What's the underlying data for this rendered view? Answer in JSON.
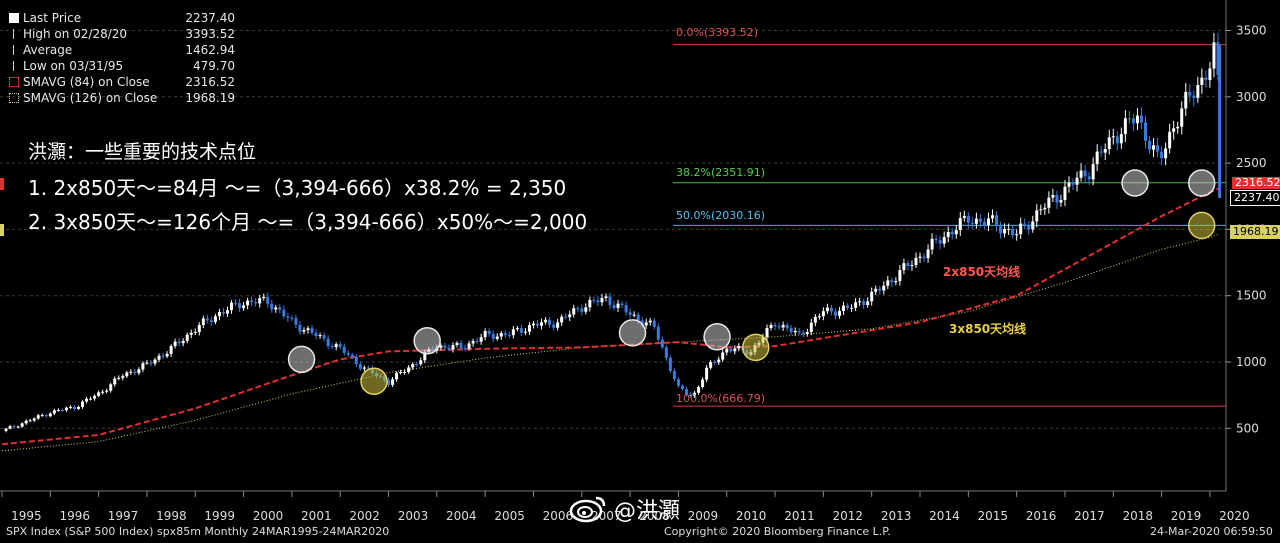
{
  "legend": {
    "rows": [
      {
        "label": "Last Price",
        "value": "2237.40",
        "icon": "square-icon",
        "color": "#ffffff"
      },
      {
        "label": "High on 02/28/20",
        "value": "3393.52",
        "icon": "high-marker-icon",
        "color": "#cccccc"
      },
      {
        "label": "Average",
        "value": "1462.94",
        "icon": "average-marker-icon",
        "color": "#cccccc"
      },
      {
        "label": "Low on 03/31/95",
        "value": "479.70",
        "icon": "low-marker-icon",
        "color": "#cccccc"
      },
      {
        "label": "SMAVG (84)  on Close",
        "value": "2316.52",
        "icon": "dashed-red-square-icon",
        "color": "#e03030"
      },
      {
        "label": "SMAVG (126)  on Close",
        "value": "1968.19",
        "icon": "dotted-yellow-square-icon",
        "color": "#d8d060"
      }
    ]
  },
  "annotation": {
    "title": "洪灝：一些重要的技术点位",
    "line1": "1. 2x850天～=84月 ～=（3,394-666）x38.2% = 2,350",
    "line2": "2. 3x850天～=126个月 ～=（3,394-666）x50%～=2,000"
  },
  "fib_labels": {
    "fib0": "0.0%(3393.52)",
    "fib382": "38.2%(2351.91)",
    "fib50": "50.0%(2030.16)",
    "fib100": "100.0%(666.79)"
  },
  "ma_labels": {
    "ma84": "2x850天均线",
    "ma126": "3x850天均线"
  },
  "price_tags": {
    "red": "2316.52",
    "last": "2237.40",
    "yellow": "1968.19"
  },
  "footer": {
    "left": "SPX Index (S&P 500 Index) spx85m  Monthly 24MAR1995-24MAR2020",
    "center": "Copyright© 2020 Bloomberg Finance L.P.",
    "right": "24-Mar-2020 06:59:50"
  },
  "watermark": "@洪灝",
  "colors": {
    "up": "#ffffff",
    "down": "#3a7be0",
    "ma84": "#e03030",
    "ma126": "#d8d060",
    "fib0": "#d04040",
    "fib382": "#40c040",
    "fib50": "#40b0e0",
    "fib100": "#d04040"
  },
  "chart_data": {
    "type": "line",
    "title": "SPX Index (S&P 500 Index) Monthly",
    "x_categories": [
      "1995",
      "1996",
      "1997",
      "1998",
      "1999",
      "2000",
      "2001",
      "2002",
      "2003",
      "2004",
      "2005",
      "2006",
      "2007",
      "2008",
      "2009",
      "2010",
      "2011",
      "2012",
      "2013",
      "2014",
      "2015",
      "2016",
      "2017",
      "2018",
      "2019",
      "2020"
    ],
    "y_ticks": [
      500,
      1000,
      1500,
      2000,
      2500,
      3000,
      3500
    ],
    "ylim": [
      0,
      3620
    ],
    "series": [
      {
        "name": "Last Price",
        "x": [
          1995,
          1995.5,
          1996,
          1996.5,
          1997,
          1997.5,
          1998,
          1998.5,
          1999,
          1999.5,
          2000,
          2000.5,
          2001,
          2001.5,
          2002,
          2002.5,
          2003,
          2003.5,
          2004,
          2004.5,
          2005,
          2005.5,
          2006,
          2006.5,
          2007,
          2007.5,
          2008,
          2008.5,
          2009,
          2009.3,
          2009.6,
          2010,
          2010.5,
          2011,
          2011.5,
          2012,
          2012.5,
          2013,
          2013.5,
          2014,
          2014.5,
          2015,
          2015.5,
          2016,
          2016.5,
          2017,
          2017.5,
          2018,
          2018.5,
          2018.95,
          2019.2,
          2019.5,
          2020,
          2020.15,
          2020.22
        ],
        "y": [
          480,
          550,
          620,
          660,
          760,
          900,
          980,
          1100,
          1250,
          1370,
          1450,
          1460,
          1300,
          1200,
          1100,
          950,
          850,
          980,
          1120,
          1110,
          1200,
          1210,
          1280,
          1300,
          1420,
          1480,
          1360,
          1260,
          800,
          740,
          950,
          1100,
          1080,
          1300,
          1200,
          1380,
          1400,
          1500,
          1650,
          1800,
          1950,
          2080,
          2050,
          1960,
          2150,
          2300,
          2450,
          2700,
          2850,
          2500,
          2750,
          2950,
          3230,
          3390,
          2237
        ]
      },
      {
        "name": "SMAVG (84)",
        "x": [
          1995,
          1997,
          1999,
          2001,
          2002,
          2003,
          2005,
          2007,
          2008,
          2009,
          2010,
          2011,
          2012,
          2014,
          2016,
          2017,
          2018,
          2019,
          2020,
          2020.22
        ],
        "y": [
          380,
          450,
          650,
          900,
          1020,
          1080,
          1100,
          1110,
          1130,
          1150,
          1110,
          1120,
          1180,
          1300,
          1500,
          1700,
          1900,
          2100,
          2280,
          2316.52
        ]
      },
      {
        "name": "SMAVG (126)",
        "x": [
          1995,
          1997,
          1999,
          2001,
          2003,
          2005,
          2007,
          2009,
          2011,
          2013,
          2015,
          2017,
          2019,
          2020,
          2020.22
        ],
        "y": [
          330,
          400,
          560,
          760,
          920,
          1030,
          1110,
          1150,
          1190,
          1250,
          1380,
          1600,
          1850,
          1940,
          1968.19
        ]
      }
    ],
    "fib_levels": [
      3393.52,
      2351.91,
      2030.16,
      666.79
    ],
    "last_price": 2237.4,
    "high": 3393.52,
    "average": 1462.94,
    "low": 479.7,
    "circles": [
      {
        "year": 2001.2,
        "price": 1020,
        "color": "white"
      },
      {
        "year": 2002.7,
        "price": 855,
        "color": "yellow"
      },
      {
        "year": 2003.8,
        "price": 1160,
        "color": "white"
      },
      {
        "year": 2008.05,
        "price": 1220,
        "color": "white"
      },
      {
        "year": 2009.8,
        "price": 1190,
        "color": "white"
      },
      {
        "year": 2010.6,
        "price": 1110,
        "color": "yellow"
      },
      {
        "year": 2018.45,
        "price": 2350,
        "color": "white"
      },
      {
        "year": 2019.83,
        "price": 2350,
        "color": "white"
      },
      {
        "year": 2019.83,
        "price": 2030,
        "color": "yellow"
      }
    ]
  }
}
